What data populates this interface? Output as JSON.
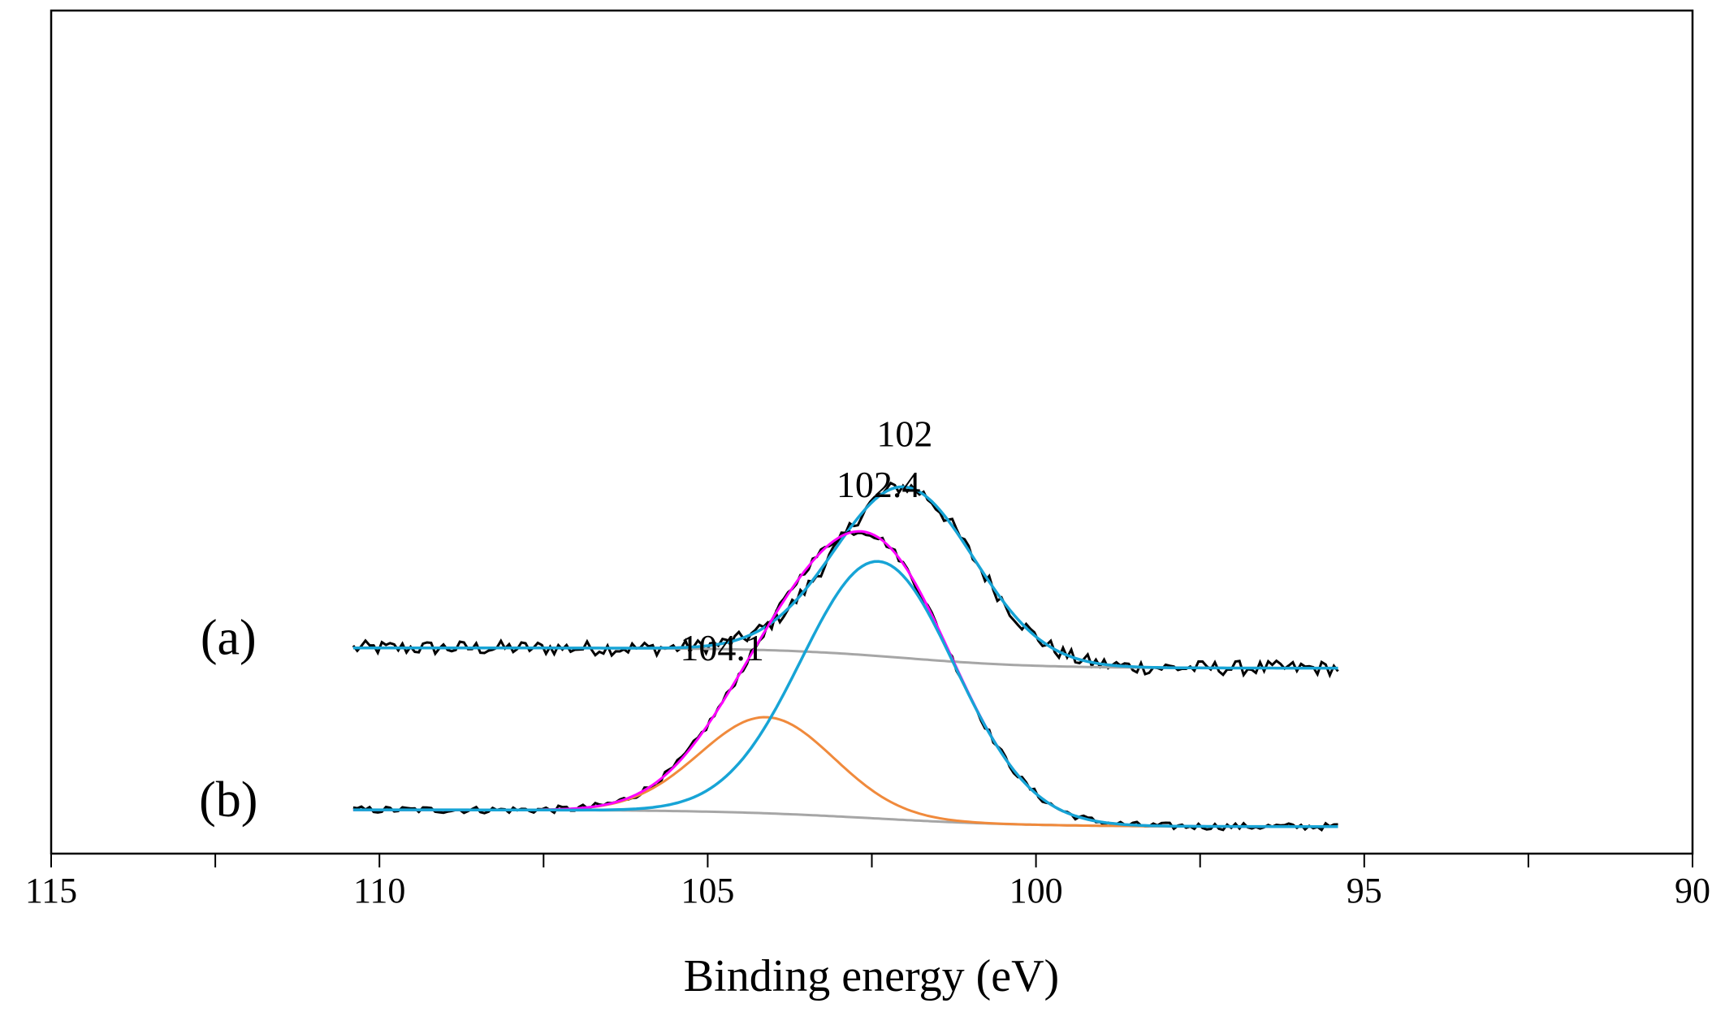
{
  "chart_data": {
    "type": "line",
    "title": "",
    "xlabel": "Binding energy (eV)",
    "ylabel": "",
    "xlim": [
      115,
      90
    ],
    "x_reversed": true,
    "x_ticks": [
      115,
      110,
      105,
      100,
      95,
      90
    ],
    "x_tick_labels": [
      "115",
      "110",
      "105",
      "100",
      "95",
      "90"
    ],
    "grid": false,
    "legend": "none",
    "ylim": [
      0,
      100
    ],
    "colors": {
      "raw": "#000000",
      "background": "#a6a6a6",
      "component_low": "#17a4d6",
      "component_high": "#f08a3c",
      "envelope": "#ff00ff"
    },
    "panels": [
      {
        "label": "(a)",
        "x_range": [
          110.4,
          95.4
        ],
        "baseline": {
          "left": 24.4,
          "right": 22.0,
          "center": 102.0,
          "width": 1.0
        },
        "noise": 0.55,
        "peaks": [
          {
            "name": "",
            "center": 102.0,
            "height": 20.3,
            "fwhm": 2.5,
            "annotation": "102"
          }
        ],
        "series": [
          "raw",
          "background",
          "component_low"
        ]
      },
      {
        "label": "(b)",
        "x_range": [
          110.4,
          95.4
        ],
        "baseline": {
          "left": 5.2,
          "right": 3.2,
          "center": 102.5,
          "width": 1.2
        },
        "noise": 0.35,
        "peaks": [
          {
            "name": "",
            "center": 102.4,
            "height": 30.5,
            "fwhm": 2.75,
            "annotation": "102.4"
          },
          {
            "name": "",
            "center": 104.1,
            "height": 11.4,
            "fwhm": 2.4,
            "annotation": "104.1"
          }
        ],
        "series": [
          "raw",
          "background",
          "component_low",
          "component_high",
          "envelope"
        ]
      }
    ]
  }
}
